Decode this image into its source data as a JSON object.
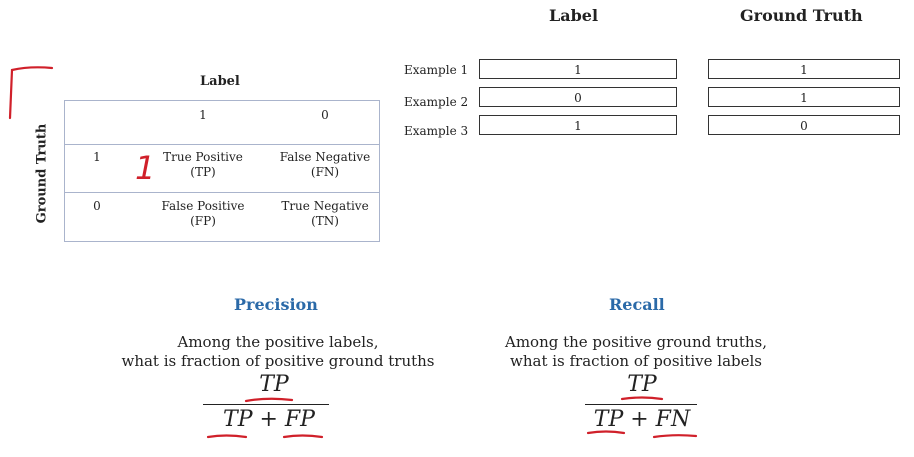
{
  "confusion_matrix": {
    "label_header": "Label",
    "ground_truth_header": "Ground Truth",
    "col_labels": [
      "1",
      "0"
    ],
    "rows": [
      {
        "row_label": "1",
        "cells": [
          {
            "name": "True Positive",
            "abbr": "(TP)"
          },
          {
            "name": "False Negative",
            "abbr": "(FN)"
          }
        ]
      },
      {
        "row_label": "0",
        "cells": [
          {
            "name": "False Positive",
            "abbr": "(FP)"
          },
          {
            "name": "True Negative",
            "abbr": "(TN)"
          }
        ]
      }
    ]
  },
  "examples_table": {
    "label_header": "Label",
    "ground_truth_header": "Ground Truth",
    "rows": [
      {
        "name": "Example 1",
        "label": "1",
        "ground_truth": "1"
      },
      {
        "name": "Example 2",
        "label": "0",
        "ground_truth": "1"
      },
      {
        "name": "Example 3",
        "label": "1",
        "ground_truth": "0"
      }
    ]
  },
  "precision": {
    "title": "Precision",
    "desc_line1": "Among the positive labels,",
    "desc_line2": "what is fraction of positive ground truths",
    "numerator": "TP",
    "denominator": "TP + FP"
  },
  "recall": {
    "title": "Recall",
    "desc_line1": "Among the positive ground truths,",
    "desc_line2": "what is fraction of positive labels",
    "numerator": "TP",
    "denominator": "TP + FN"
  },
  "annotations": {
    "handwritten_tp_count": "1",
    "ink_color": "#d0202a"
  }
}
